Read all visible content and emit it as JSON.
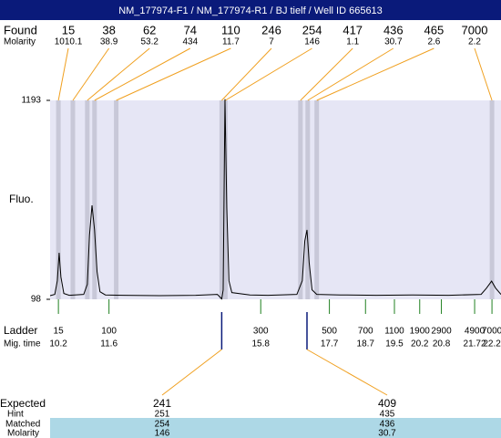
{
  "header": {
    "title": "NM_177974-F1 / NM_177974-R1 / BJ tielf / Well ID 665613"
  },
  "labels": {
    "found": "Found",
    "molarity": "Molarity",
    "ladder": "Ladder",
    "mig_time": "Mig. time",
    "expected": "Expected",
    "hint": "Hint",
    "matched": "Matched",
    "molarity_bottom": "Molarity"
  },
  "chart_data": {
    "type": "line",
    "y_label": "Fluo.",
    "color": "#000000",
    "xlim": [
      9.97,
      22.45
    ],
    "ylim": [
      98,
      1193
    ],
    "yticks": [
      98,
      1193
    ],
    "x": [
      9.97,
      10.1,
      10.17,
      10.22,
      10.27,
      10.35,
      10.5,
      10.9,
      11.0,
      11.06,
      11.13,
      11.2,
      11.27,
      11.35,
      11.5,
      12,
      13,
      14,
      14.6,
      14.72,
      14.76,
      14.81,
      14.86,
      14.92,
      15.0,
      15.5,
      16,
      16.8,
      16.95,
      17.02,
      17.08,
      17.14,
      17.22,
      17.35,
      18,
      19,
      20,
      21,
      21.9,
      22.05,
      22.19,
      22.3,
      22.45
    ],
    "values": [
      118,
      125,
      200,
      354,
      220,
      130,
      120,
      125,
      180,
      450,
      615,
      480,
      250,
      140,
      122,
      120,
      118,
      120,
      125,
      100,
      150,
      1200,
      600,
      200,
      135,
      122,
      120,
      125,
      200,
      420,
      480,
      300,
      150,
      125,
      122,
      120,
      122,
      120,
      125,
      160,
      198,
      160,
      125
    ]
  },
  "found": {
    "sizes": [
      15,
      38,
      62,
      74,
      110,
      246,
      254,
      417,
      436,
      465,
      7000
    ],
    "molarity": [
      1010.1,
      38.9,
      53.2,
      434,
      11.7,
      7,
      146,
      1.1,
      30.7,
      2.6,
      2.2
    ],
    "mig_times": [
      10.2,
      10.6,
      11.0,
      11.2,
      11.8,
      14.72,
      14.82,
      16.9,
      17.1,
      17.35,
      22.2
    ]
  },
  "ladder": {
    "sizes": [
      15,
      100,
      300,
      500,
      700,
      1100,
      1900,
      2900,
      4900,
      7000
    ],
    "mig_times": [
      10.2,
      11.6,
      15.8,
      17.7,
      18.7,
      19.5,
      20.2,
      20.8,
      21.72,
      22.2
    ]
  },
  "expected": {
    "sizes": [
      241,
      409
    ],
    "hint": [
      251,
      435
    ],
    "matched": [
      254,
      436
    ],
    "molarity": [
      146,
      30.7
    ],
    "mig_times": [
      14.72,
      17.08
    ]
  }
}
